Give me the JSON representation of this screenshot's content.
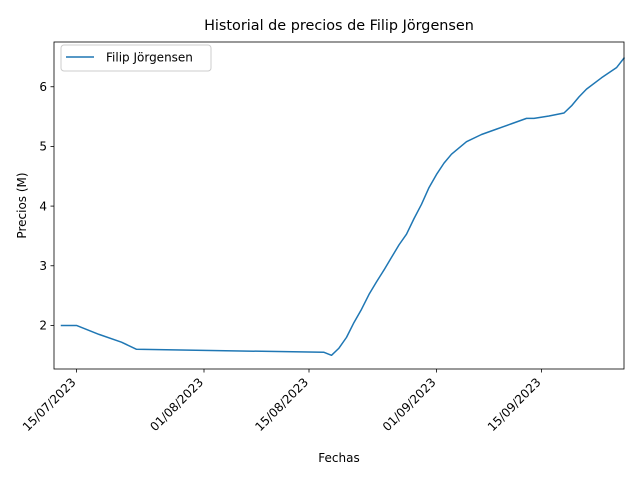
{
  "chart_data": {
    "type": "line",
    "title": "Historial de precios de Filip Jörgensen",
    "xlabel": "Fechas",
    "ylabel": "Precios (M)",
    "xlim": [
      "2023-07-12",
      "2023-09-26"
    ],
    "ylim": [
      1.27,
      6.75
    ],
    "x_ticks": [
      "2023-07-15",
      "2023-08-01",
      "2023-08-15",
      "2023-09-01",
      "2023-09-15"
    ],
    "x_tick_labels": [
      "15/07/2023",
      "01/08/2023",
      "15/08/2023",
      "01/09/2023",
      "15/09/2023"
    ],
    "y_ticks": [
      2,
      3,
      4,
      5,
      6
    ],
    "y_tick_labels": [
      "2",
      "3",
      "4",
      "5",
      "6"
    ],
    "grid": false,
    "legend_position": "upper-left",
    "series": [
      {
        "name": "Filip Jörgensen",
        "color": "#1f77b4",
        "points": [
          [
            "2023-07-13",
            2.0
          ],
          [
            "2023-07-15",
            2.0
          ],
          [
            "2023-07-18",
            1.85
          ],
          [
            "2023-07-21",
            1.72
          ],
          [
            "2023-07-23",
            1.6
          ],
          [
            "2023-08-17",
            1.55
          ],
          [
            "2023-08-18",
            1.5
          ],
          [
            "2023-08-19",
            1.62
          ],
          [
            "2023-08-20",
            1.8
          ],
          [
            "2023-08-21",
            2.05
          ],
          [
            "2023-08-22",
            2.27
          ],
          [
            "2023-08-23",
            2.52
          ],
          [
            "2023-08-24",
            2.73
          ],
          [
            "2023-08-25",
            2.93
          ],
          [
            "2023-08-26",
            3.14
          ],
          [
            "2023-08-27",
            3.35
          ],
          [
            "2023-08-28",
            3.53
          ],
          [
            "2023-08-29",
            3.79
          ],
          [
            "2023-08-30",
            4.03
          ],
          [
            "2023-08-31",
            4.31
          ],
          [
            "2023-09-01",
            4.53
          ],
          [
            "2023-09-02",
            4.72
          ],
          [
            "2023-09-03",
            4.87
          ],
          [
            "2023-09-05",
            5.08
          ],
          [
            "2023-09-07",
            5.2
          ],
          [
            "2023-09-09",
            5.29
          ],
          [
            "2023-09-11",
            5.38
          ],
          [
            "2023-09-13",
            5.47
          ],
          [
            "2023-09-14",
            5.47
          ],
          [
            "2023-09-16",
            5.51
          ],
          [
            "2023-09-18",
            5.56
          ],
          [
            "2023-09-19",
            5.68
          ],
          [
            "2023-09-20",
            5.83
          ],
          [
            "2023-09-21",
            5.96
          ],
          [
            "2023-09-23",
            6.15
          ],
          [
            "2023-09-25",
            6.32
          ],
          [
            "2023-09-26",
            6.48
          ]
        ]
      }
    ]
  }
}
